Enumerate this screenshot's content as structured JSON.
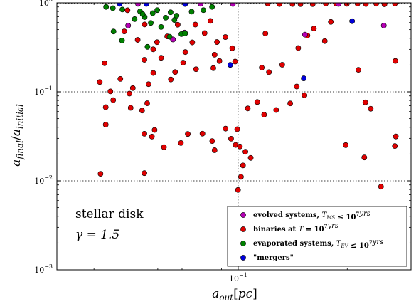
{
  "chart_data": {
    "type": "scatter",
    "x_scale": "log",
    "y_scale": "log",
    "xlim": [
      0.0316,
      0.3
    ],
    "ylim": [
      0.001,
      1.0
    ],
    "xlabel": "a_{out}[pc]",
    "ylabel": "a_{final}/a_{initial}",
    "xticks": [
      {
        "value": 0.1,
        "label": "10^{-1}"
      }
    ],
    "yticks": [
      {
        "value": 1,
        "label": "10^{0}"
      },
      {
        "value": 0.1,
        "label": "10^{-1}"
      },
      {
        "value": 0.01,
        "label": "10^{-2}"
      },
      {
        "value": 0.001,
        "label": "10^{-3}"
      }
    ],
    "grid": "dotted major lines",
    "legend_position": "lower-right",
    "annotations": {
      "title": "stellar disk",
      "gamma": "γ = 1.5"
    },
    "series": [
      {
        "name": "binaries at T = 10^7 yrs",
        "color": "#e00000",
        "points": [
          [
            0.1207,
            0.9799
          ],
          [
            0.13,
            0.9696
          ],
          [
            0.1412,
            0.9699
          ],
          [
            0.1486,
            0.9695
          ],
          [
            0.1606,
            0.9681
          ],
          [
            0.1745,
            0.9815
          ],
          [
            0.1863,
            0.9794
          ],
          [
            0.1995,
            0.9747
          ],
          [
            0.2135,
            0.9795
          ],
          [
            0.2252,
            0.9707
          ],
          [
            0.2405,
            0.9788
          ],
          [
            0.2534,
            0.9646
          ],
          [
            0.2708,
            0.9811
          ],
          [
            0.0495,
            0.8262
          ],
          [
            0.0552,
            0.5715
          ],
          [
            0.0485,
            0.4771
          ],
          [
            0.0528,
            0.3834
          ],
          [
            0.0583,
            0.3004
          ],
          [
            0.0597,
            0.3612
          ],
          [
            0.0613,
            0.2413
          ],
          [
            0.0681,
            0.5676
          ],
          [
            0.0637,
            0.4197
          ],
          [
            0.0747,
            0.3594
          ],
          [
            0.0715,
            0.2797
          ],
          [
            0.0808,
            0.4569
          ],
          [
            0.0762,
            0.5699
          ],
          [
            0.0838,
            0.6262
          ],
          [
            0.0861,
            0.2613
          ],
          [
            0.0874,
            0.3627
          ],
          [
            0.0888,
            0.2221
          ],
          [
            0.0922,
            0.4126
          ],
          [
            0.0854,
            0.1847
          ],
          [
            0.0963,
            0.3087
          ],
          [
            0.0981,
            0.2187
          ],
          [
            0.0765,
            0.1795
          ],
          [
            0.0705,
            0.2126
          ],
          [
            0.067,
            0.1666
          ],
          [
            0.0652,
            0.1376
          ],
          [
            0.0583,
            0.1628
          ],
          [
            0.0566,
            0.1219
          ],
          [
            0.0551,
            0.2289
          ],
          [
            0.0512,
            0.1101
          ],
          [
            0.0501,
            0.0955
          ],
          [
            0.0473,
            0.1396
          ],
          [
            0.0452,
            0.0807
          ],
          [
            0.0444,
            0.1011
          ],
          [
            0.0431,
            0.0672
          ],
          [
            0.0428,
            0.2097
          ],
          [
            0.0415,
            0.1287
          ],
          [
            0.0431,
            0.0428
          ],
          [
            0.0505,
            0.0661
          ],
          [
            0.0543,
            0.0616
          ],
          [
            0.0561,
            0.0744
          ],
          [
            0.0551,
            0.0338
          ],
          [
            0.0578,
            0.0314
          ],
          [
            0.0588,
            0.0373
          ],
          [
            0.0624,
            0.0239
          ],
          [
            0.0695,
            0.0266
          ],
          [
            0.0726,
            0.0336
          ],
          [
            0.0797,
            0.0339
          ],
          [
            0.0848,
            0.028
          ],
          [
            0.0861,
            0.0221
          ],
          [
            0.0923,
            0.0386
          ],
          [
            0.0956,
            0.0297
          ],
          [
            0.0984,
            0.0253
          ],
          [
            0.0994,
            0.038
          ],
          [
            0.1011,
            0.0243
          ],
          [
            0.1047,
            0.0212
          ],
          [
            0.1083,
            0.0181
          ],
          [
            0.1031,
            0.0149
          ],
          [
            0.1018,
            0.0111
          ],
          [
            0.0999,
            0.0079
          ],
          [
            0.1063,
            0.0651
          ],
          [
            0.1129,
            0.0768
          ],
          [
            0.1179,
            0.0553
          ],
          [
            0.1273,
            0.0625
          ],
          [
            0.1392,
            0.0741
          ],
          [
            0.1451,
            0.1147
          ],
          [
            0.1524,
            0.0915
          ],
          [
            0.1162,
            0.187
          ],
          [
            0.1216,
            0.1663
          ],
          [
            0.1323,
            0.2014
          ],
          [
            0.1465,
            0.3102
          ],
          [
            0.1553,
            0.4296
          ],
          [
            0.1618,
            0.5143
          ],
          [
            0.1734,
            0.3721
          ],
          [
            0.1802,
            0.6106
          ],
          [
            0.1189,
            0.4526
          ],
          [
            0.2147,
            0.1766
          ],
          [
            0.2244,
            0.0761
          ],
          [
            0.2322,
            0.0646
          ],
          [
            0.1981,
            0.0252
          ],
          [
            0.2229,
            0.0183
          ],
          [
            0.2479,
            0.0086
          ],
          [
            0.2715,
            0.2223
          ],
          [
            0.2723,
            0.0315
          ],
          [
            0.2707,
            0.0246
          ],
          [
            0.0417,
            0.012
          ],
          [
            0.0551,
            0.0122
          ]
        ]
      },
      {
        "name": "evolved systems, T_MS ≤ 10^7 yrs",
        "color": "#b400b4",
        "points": [
          [
            0.0497,
            0.5556
          ],
          [
            0.0661,
            0.3876
          ],
          [
            0.0712,
            0.4635
          ],
          [
            0.0788,
            0.9764
          ],
          [
            0.0967,
            0.9729
          ],
          [
            0.1529,
            0.4394
          ],
          [
            0.2523,
            0.5561
          ],
          [
            0.1892,
            0.9737
          ],
          [
            0.0529,
            0.9744
          ]
        ]
      },
      {
        "name": "evaporated systems, T_EV ≤ 10^7 yrs",
        "color": "#008000",
        "points": [
          [
            0.0453,
            0.4764
          ],
          [
            0.0478,
            0.3775
          ],
          [
            0.0552,
            0.6926
          ],
          [
            0.0562,
            0.3203
          ],
          [
            0.0574,
            0.5946
          ],
          [
            0.0613,
            0.5356
          ],
          [
            0.0647,
            0.4161
          ],
          [
            0.0667,
            0.6418
          ],
          [
            0.0697,
            0.4459
          ],
          [
            0.0714,
            0.4539
          ],
          [
            0.0518,
            0.6562
          ],
          [
            0.0536,
            0.8014
          ],
          [
            0.0545,
            0.7462
          ],
          [
            0.0581,
            0.7651
          ],
          [
            0.0598,
            0.8285
          ],
          [
            0.0631,
            0.6809
          ],
          [
            0.0651,
            0.7836
          ],
          [
            0.0676,
            0.7182
          ],
          [
            0.0744,
            0.7958
          ],
          [
            0.0802,
            0.8276
          ],
          [
            0.0847,
            0.9007
          ],
          [
            0.0451,
            0.8703
          ],
          [
            0.0479,
            0.8412
          ],
          [
            0.0432,
            0.9005
          ]
        ]
      },
      {
        "name": "\"mergers\"",
        "color": "#0000dc",
        "points": [
          [
            0.2063,
            0.6222
          ],
          [
            0.0951,
            0.2007
          ],
          [
            0.1517,
            0.1417
          ],
          [
            0.0471,
            0.9765
          ],
          [
            0.0558,
            0.9726
          ],
          [
            0.0714,
            0.9712
          ]
        ]
      }
    ]
  },
  "legend": {
    "items": [
      {
        "label": "evolved systems, T_MS ≤ 10^7 yrs",
        "color": "#b400b4"
      },
      {
        "label": "binaries at T = 10^7 yrs",
        "color": "#e00000"
      },
      {
        "label": "evaporated systems, T_EV ≤ 10^7 yrs",
        "color": "#008000"
      },
      {
        "label": "\"mergers\"",
        "color": "#0000dc"
      }
    ]
  }
}
